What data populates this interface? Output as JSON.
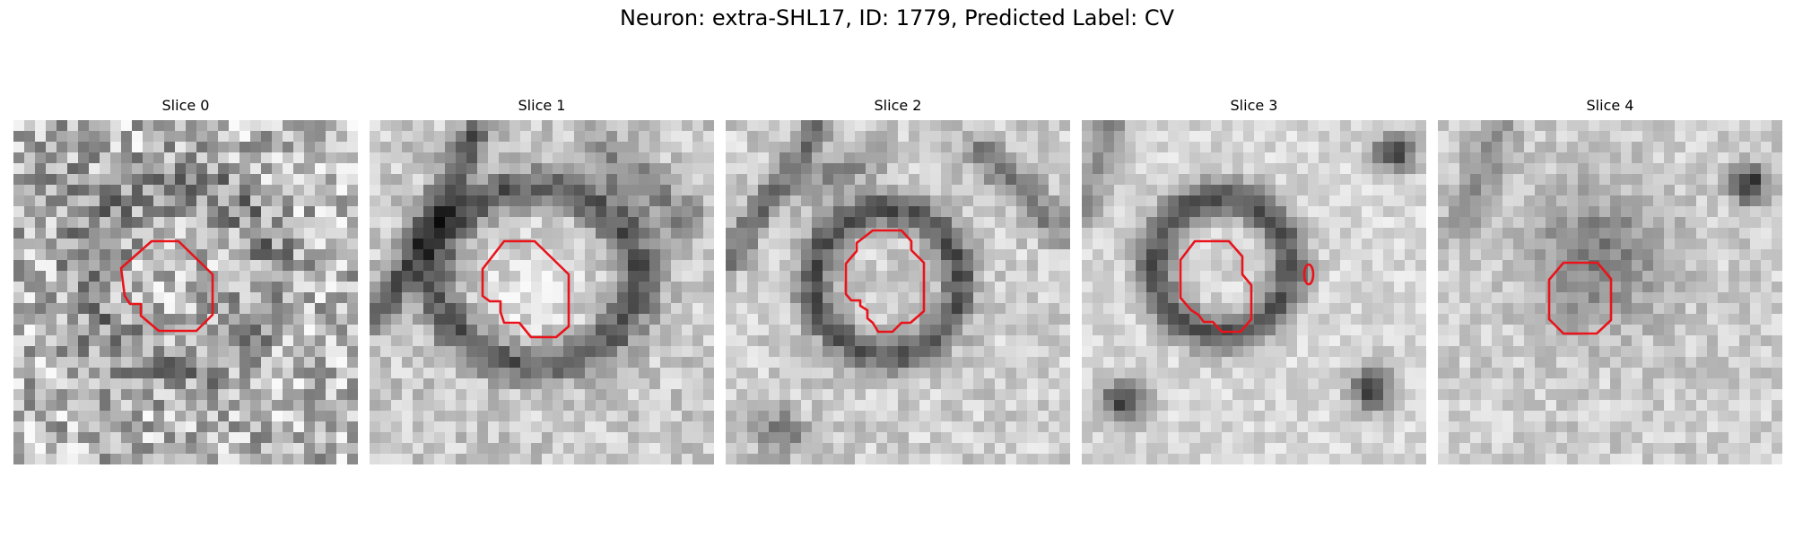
{
  "figure": {
    "title": "Neuron: extra-SHL17, ID: 1779, Predicted Label: CV"
  },
  "contour_color": "#e8141b",
  "panels": [
    {
      "title": "Slice 0"
    },
    {
      "title": "Slice 1"
    },
    {
      "title": "Slice 2"
    },
    {
      "title": "Slice 3"
    },
    {
      "title": "Slice 4"
    }
  ]
}
